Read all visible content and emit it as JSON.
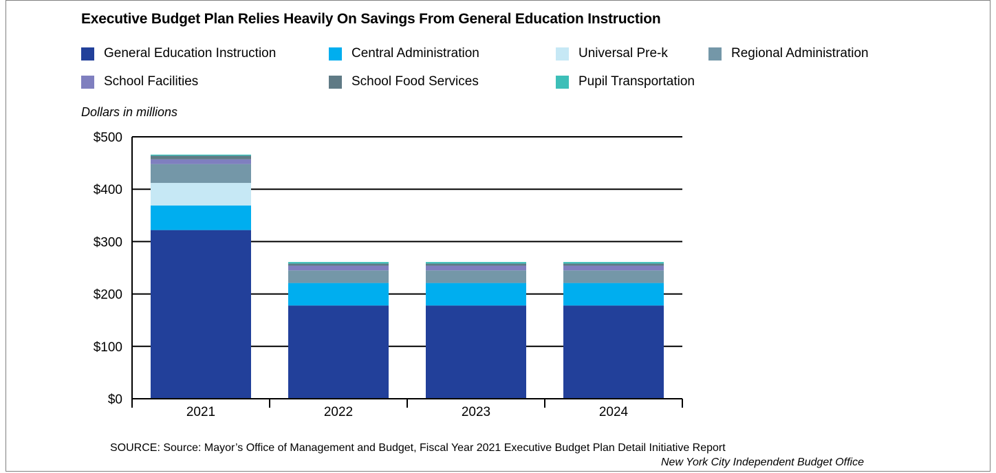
{
  "chart_data": {
    "type": "bar",
    "stacked": true,
    "title": "Executive Budget Plan Relies Heavily On Savings From General Education Instruction",
    "unit_label": "Dollars in millions",
    "categories": [
      "2021",
      "2022",
      "2023",
      "2024"
    ],
    "y_ticks": [
      "$0",
      "$100",
      "$200",
      "$300",
      "$400",
      "$500"
    ],
    "ylim": [
      0,
      500
    ],
    "grid": true,
    "legend_position": "top",
    "series": [
      {
        "name": "General Education Instruction",
        "color": "#22409a",
        "values": [
          322,
          178,
          178,
          178
        ]
      },
      {
        "name": "Central Administration",
        "color": "#00aeef",
        "values": [
          47,
          43,
          43,
          43
        ]
      },
      {
        "name": "Universal Pre-k",
        "color": "#c6e8f5",
        "values": [
          43,
          0,
          0,
          0
        ]
      },
      {
        "name": "Regional Administration",
        "color": "#7497a8",
        "values": [
          36,
          24,
          24,
          24
        ]
      },
      {
        "name": "School Facilities",
        "color": "#7f7fbf",
        "values": [
          9,
          9,
          9,
          9
        ]
      },
      {
        "name": "School Food Services",
        "color": "#5f7a85",
        "values": [
          7,
          4,
          4,
          4
        ]
      },
      {
        "name": "Pupil Transportation",
        "color": "#3dbfb8",
        "values": [
          2,
          3,
          3,
          3
        ]
      }
    ]
  },
  "source": "SOURCE: Source: Mayor’s Office of Management and Budget, Fiscal Year 2021 Executive Budget Plan Detail Initiative Report",
  "credit": "New York City Independent Budget Office"
}
